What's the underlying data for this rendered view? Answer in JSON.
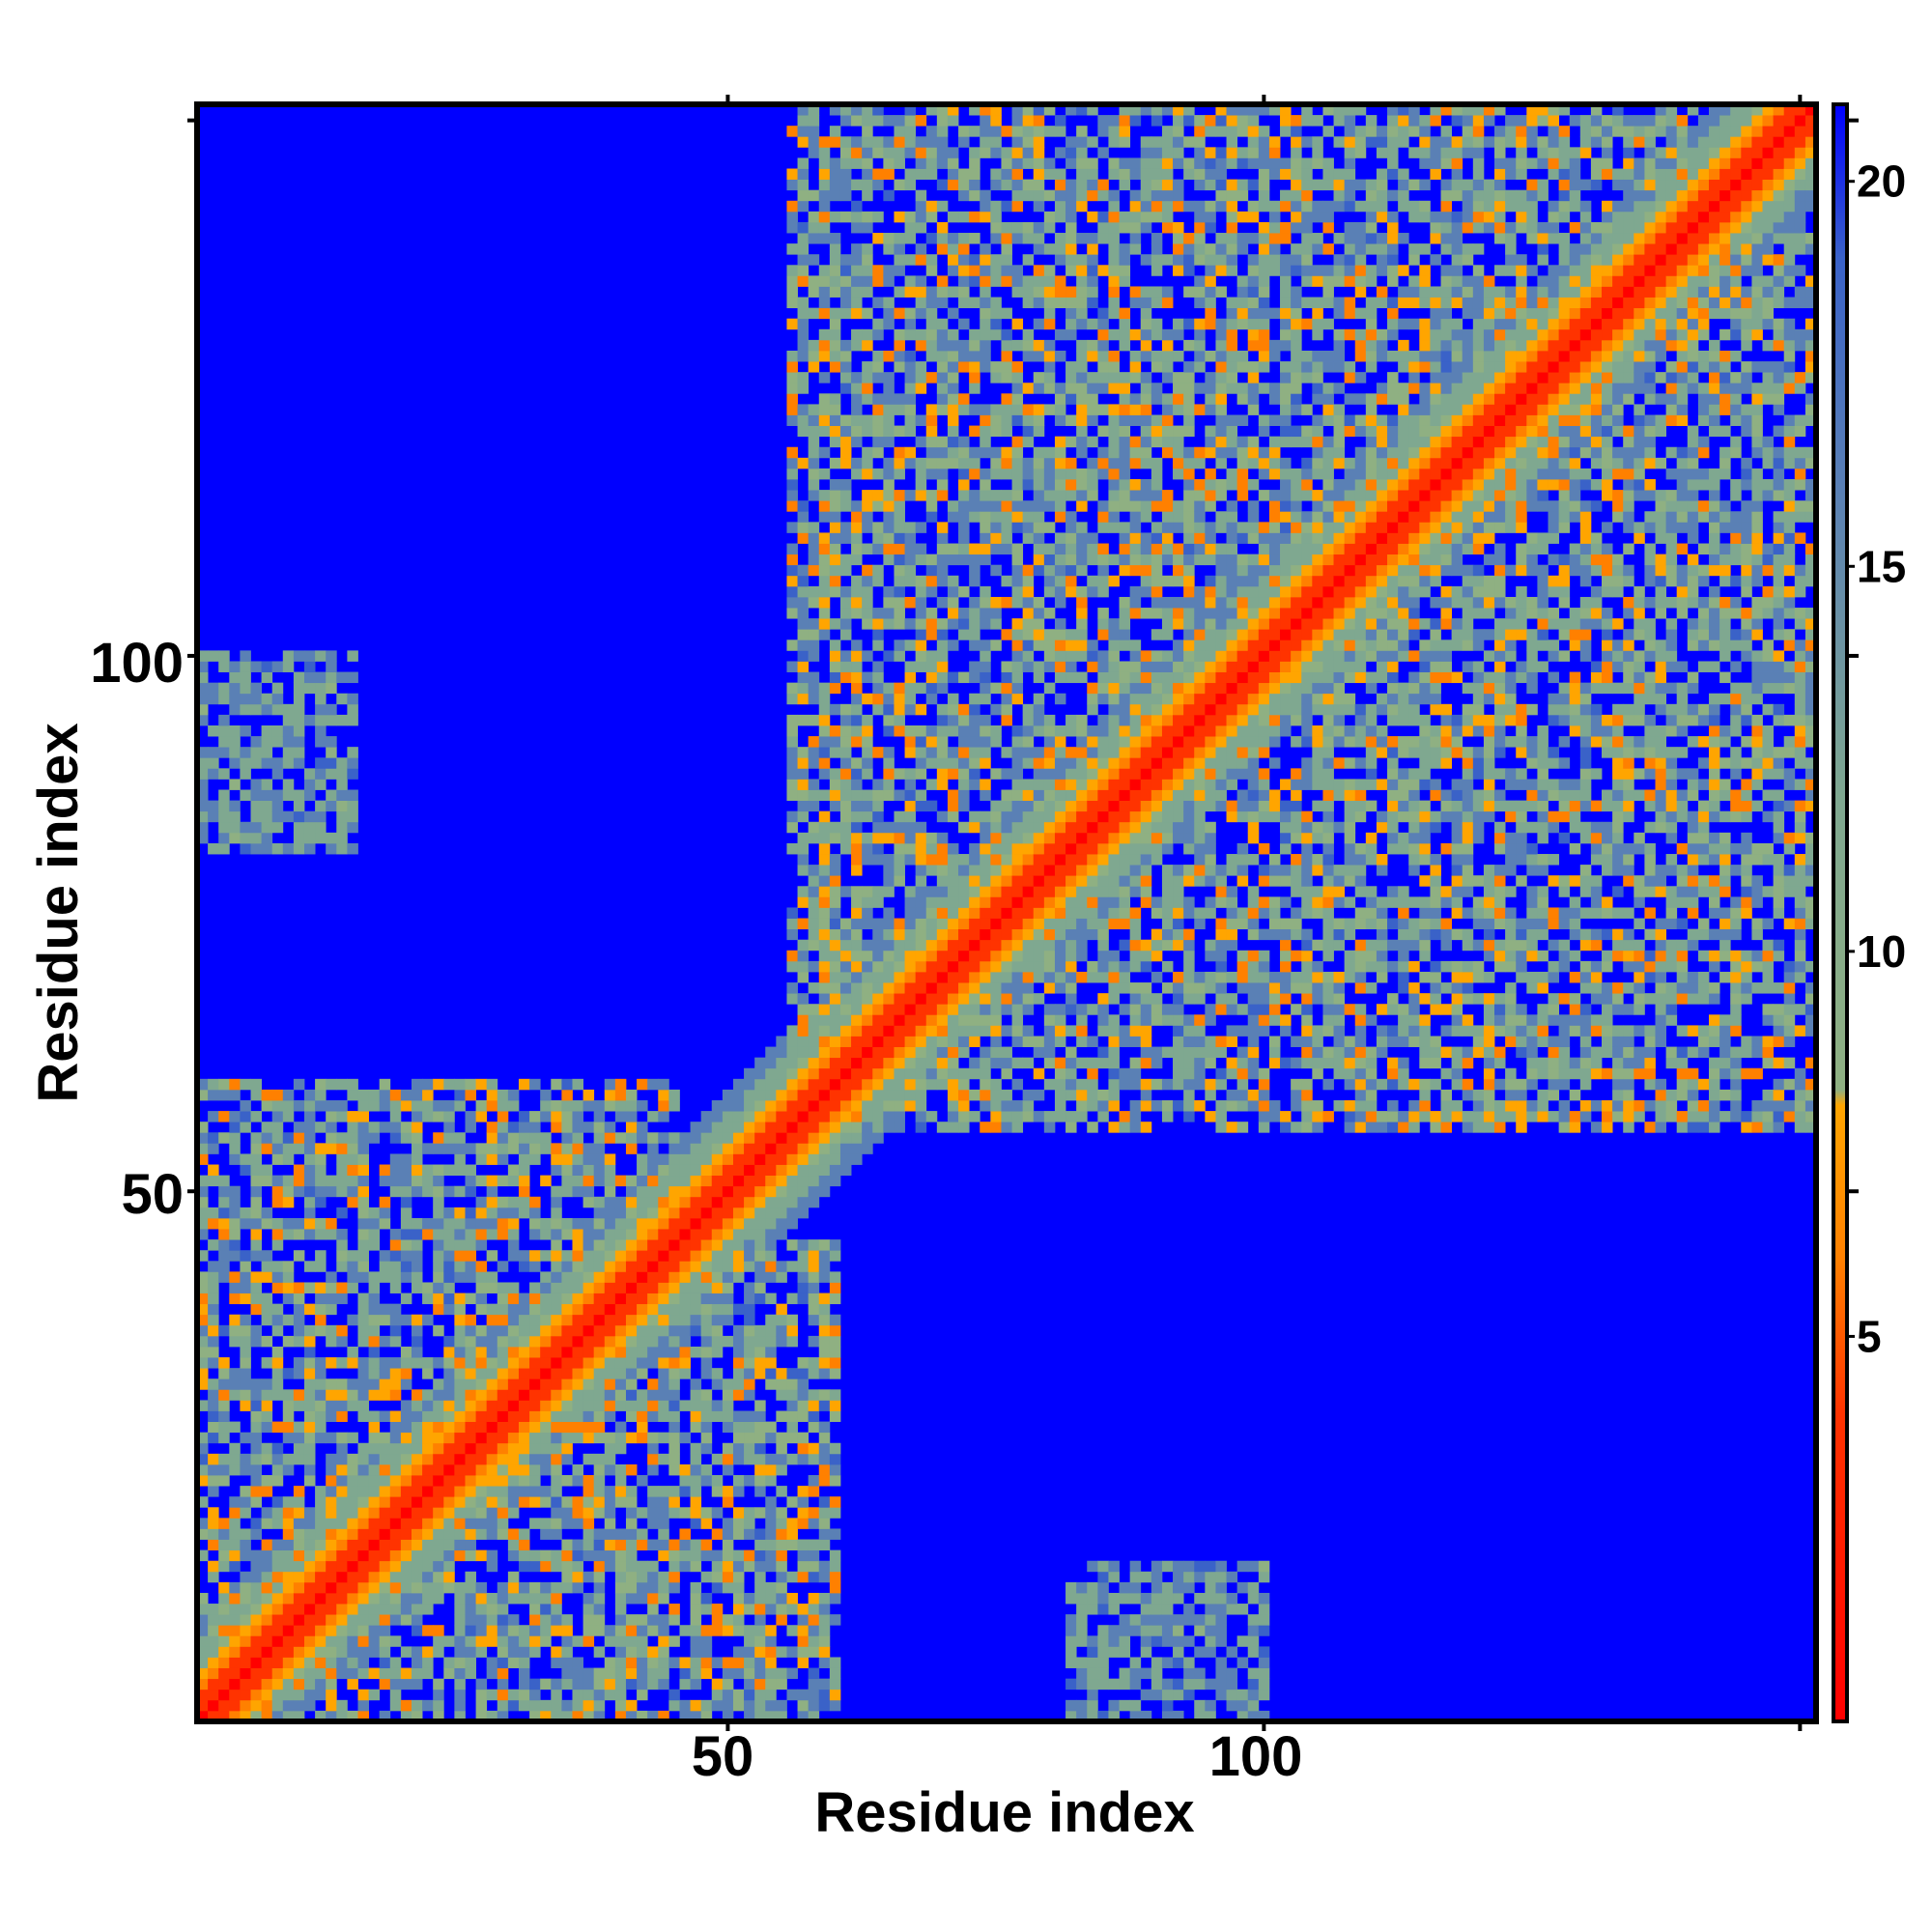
{
  "chart_data": {
    "type": "heatmap",
    "title": "",
    "xlabel": "Residue index",
    "ylabel": "Residue index",
    "xlim": [
      1,
      151
    ],
    "ylim": [
      1,
      151
    ],
    "x_ticks": [
      50,
      100
    ],
    "y_ticks": [
      50,
      100
    ],
    "x_tick_labels": [
      "50",
      "100"
    ],
    "y_tick_labels": [
      "50",
      "100"
    ],
    "colorbar": {
      "range": [
        0,
        21
      ],
      "ticks": [
        5,
        10,
        15,
        20
      ],
      "tick_labels": [
        "5",
        "10",
        "15",
        "20"
      ],
      "stops": [
        {
          "value": 0,
          "color": "#ff0000"
        },
        {
          "value": 4,
          "color": "#ff3300"
        },
        {
          "value": 6,
          "color": "#ff8000"
        },
        {
          "value": 8,
          "color": "#ffa500"
        },
        {
          "value": 8.2,
          "color": "#8fb082"
        },
        {
          "value": 12,
          "color": "#7fa890"
        },
        {
          "value": 16,
          "color": "#5a80b5"
        },
        {
          "value": 19,
          "color": "#3a62c8"
        },
        {
          "value": 21,
          "color": "#0000ff"
        }
      ]
    },
    "cutoff_color": "#0000ff",
    "grid": false,
    "matrix_description_values": {
      "diagonal": 3.8,
      "near_diagonal_band_width": 4,
      "contact_regions": [
        {
          "i": [
            56,
            140
          ],
          "j": [
            60,
            151
          ],
          "value_range": [
            6,
            18
          ]
        },
        {
          "i": [
            1,
            45
          ],
          "j": [
            1,
            60
          ],
          "value_range": [
            6,
            18
          ]
        },
        {
          "i": [
            82,
            100
          ],
          "j": [
            1,
            15
          ],
          "value_range": [
            10,
            18
          ]
        }
      ]
    }
  }
}
